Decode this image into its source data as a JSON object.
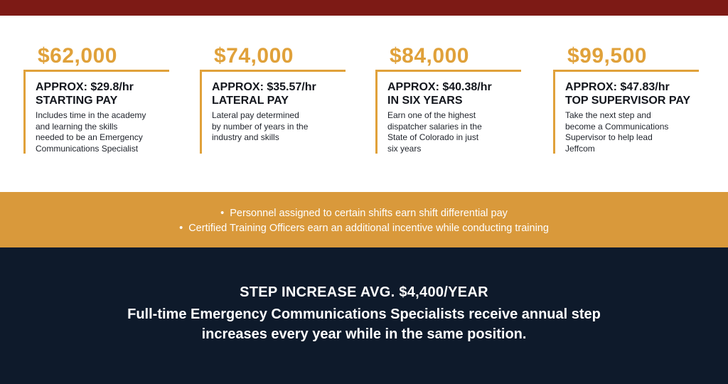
{
  "pay_cards": [
    {
      "amount": "$62,000",
      "rate": "APPROX: $29.8/hr",
      "label": "STARTING PAY",
      "desc_lines": [
        "Includes time in the academy",
        "and learning the skills",
        "needed to be an Emergency",
        "Communications Specialist"
      ]
    },
    {
      "amount": "$74,000",
      "rate": "APPROX: $35.57/hr",
      "label": "LATERAL PAY",
      "desc_lines": [
        "Lateral pay determined",
        "by number of years in the",
        "industry and skills"
      ]
    },
    {
      "amount": "$84,000",
      "rate": "APPROX: $40.38/hr",
      "label": "IN SIX YEARS",
      "desc_lines": [
        "Earn one of the highest",
        "dispatcher salaries in the",
        "State of Colorado in just",
        "six years"
      ]
    },
    {
      "amount": "$99,500",
      "rate": "APPROX: $47.83/hr",
      "label": "TOP SUPERVISOR PAY",
      "desc_lines": [
        "Take the next step and",
        "become a Communications",
        "Supervisor to help lead",
        "Jeffcom"
      ]
    }
  ],
  "bullets": [
    "Personnel assigned to certain shifts earn shift differential pay",
    "Certified Training Officers earn an additional incentive while conducting training"
  ],
  "step": {
    "title": "STEP INCREASE AVG. $4,400/YEAR",
    "desc_lines": [
      "Full-time Emergency Communications Specialists receive annual step",
      "increases every year while in the same position."
    ]
  },
  "colors": {
    "top_bar": "#7d1a15",
    "gold": "#d9993b",
    "accent_amount": "#e0a13a",
    "navy": "#0e1a2b"
  }
}
